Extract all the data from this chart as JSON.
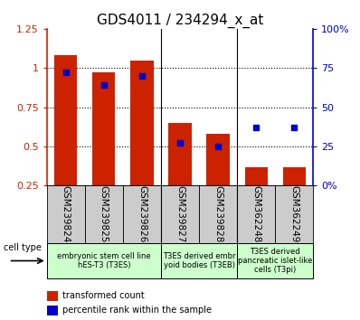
{
  "title": "GDS4011 / 234294_x_at",
  "samples": [
    "GSM239824",
    "GSM239825",
    "GSM239826",
    "GSM239827",
    "GSM239828",
    "GSM362248",
    "GSM362249"
  ],
  "transformed_count": [
    1.08,
    0.97,
    1.05,
    0.65,
    0.58,
    0.37,
    0.37
  ],
  "percentile_rank_pct": [
    72,
    64,
    70,
    27,
    25,
    37,
    37
  ],
  "ylim_left": [
    0.25,
    1.25
  ],
  "ylim_right": [
    0,
    100
  ],
  "yticks_left": [
    0.25,
    0.5,
    0.75,
    1.0,
    1.25
  ],
  "yticks_right": [
    0,
    25,
    50,
    75,
    100
  ],
  "ytick_labels_left": [
    "0.25",
    "0.5",
    "0.75",
    "1",
    "1.25"
  ],
  "ytick_labels_right": [
    "0%",
    "25",
    "50",
    "75",
    "100%"
  ],
  "bar_color": "#cc2200",
  "dot_color": "#0000cc",
  "background_color": "#ffffff",
  "grid_color": "#000000",
  "cell_groups": [
    {
      "label": "embryonic stem cell line\nhES-T3 (T3ES)",
      "start": 0,
      "end": 3,
      "color": "#ccffcc"
    },
    {
      "label": "T3ES derived embr\nyoid bodies (T3EB)",
      "start": 3,
      "end": 5,
      "color": "#ccffcc"
    },
    {
      "label": "T3ES derived\npancreatic islet-like\ncells (T3pi)",
      "start": 5,
      "end": 7,
      "color": "#ccffcc"
    }
  ],
  "legend_labels": [
    "transformed count",
    "percentile rank within the sample"
  ],
  "cell_type_label": "cell type",
  "bar_width": 0.6,
  "title_fontsize": 11,
  "tick_label_fontsize": 8,
  "sample_label_fontsize": 7.5
}
